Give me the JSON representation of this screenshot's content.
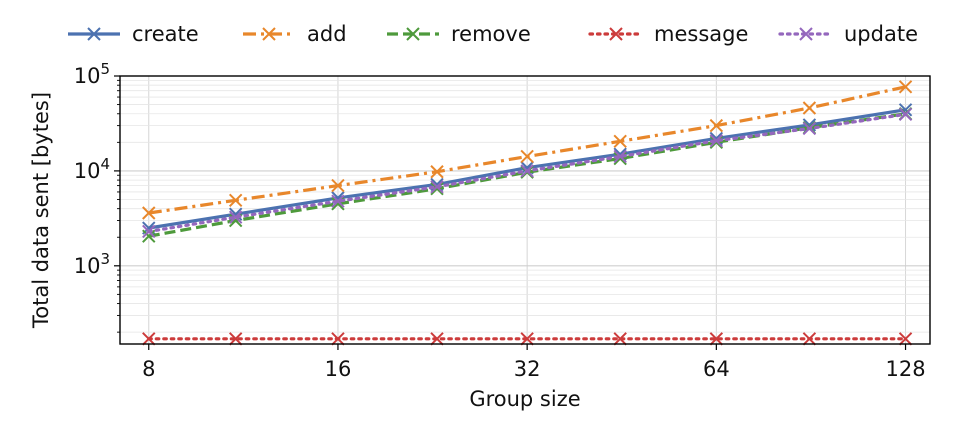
{
  "chart_data": {
    "type": "line",
    "xlabel": "Group size",
    "ylabel": "Total data sent [bytes]",
    "x_scale": "log2",
    "y_scale": "log10",
    "x": [
      8,
      11,
      16,
      23,
      32,
      45,
      64,
      90,
      128
    ],
    "xticks": [
      8,
      16,
      32,
      64,
      128
    ],
    "xlim": [
      7.2,
      140
    ],
    "ylim": [
      150,
      100000
    ],
    "yticks": [
      {
        "value": 1000,
        "base": "10",
        "exp": "3"
      },
      {
        "value": 10000,
        "base": "10",
        "exp": "4"
      },
      {
        "value": 100000,
        "base": "10",
        "exp": "5"
      }
    ],
    "grid": true,
    "legend_position": "top",
    "series": [
      {
        "name": "create",
        "color": "#4c72b0",
        "dash": "solid",
        "values": [
          2500,
          3500,
          5200,
          7200,
          10800,
          15000,
          22000,
          30500,
          44000
        ]
      },
      {
        "name": "add",
        "color": "#e8872b",
        "dash": "dashdot",
        "values": [
          3600,
          4900,
          7000,
          9800,
          14200,
          20500,
          30000,
          46000,
          77000
        ]
      },
      {
        "name": "remove",
        "color": "#4e9a3c",
        "dash": "dashed",
        "values": [
          2050,
          3000,
          4500,
          6500,
          9700,
          13500,
          20000,
          28500,
          40000
        ]
      },
      {
        "name": "message",
        "color": "#cc3b3b",
        "dash": "dotted",
        "values": [
          170,
          170,
          170,
          170,
          170,
          170,
          170,
          170,
          170
        ]
      },
      {
        "name": "update",
        "color": "#9467bd",
        "dash": "dotted",
        "values": [
          2300,
          3250,
          4800,
          6800,
          10000,
          14200,
          20800,
          28000,
          39500
        ]
      }
    ]
  }
}
